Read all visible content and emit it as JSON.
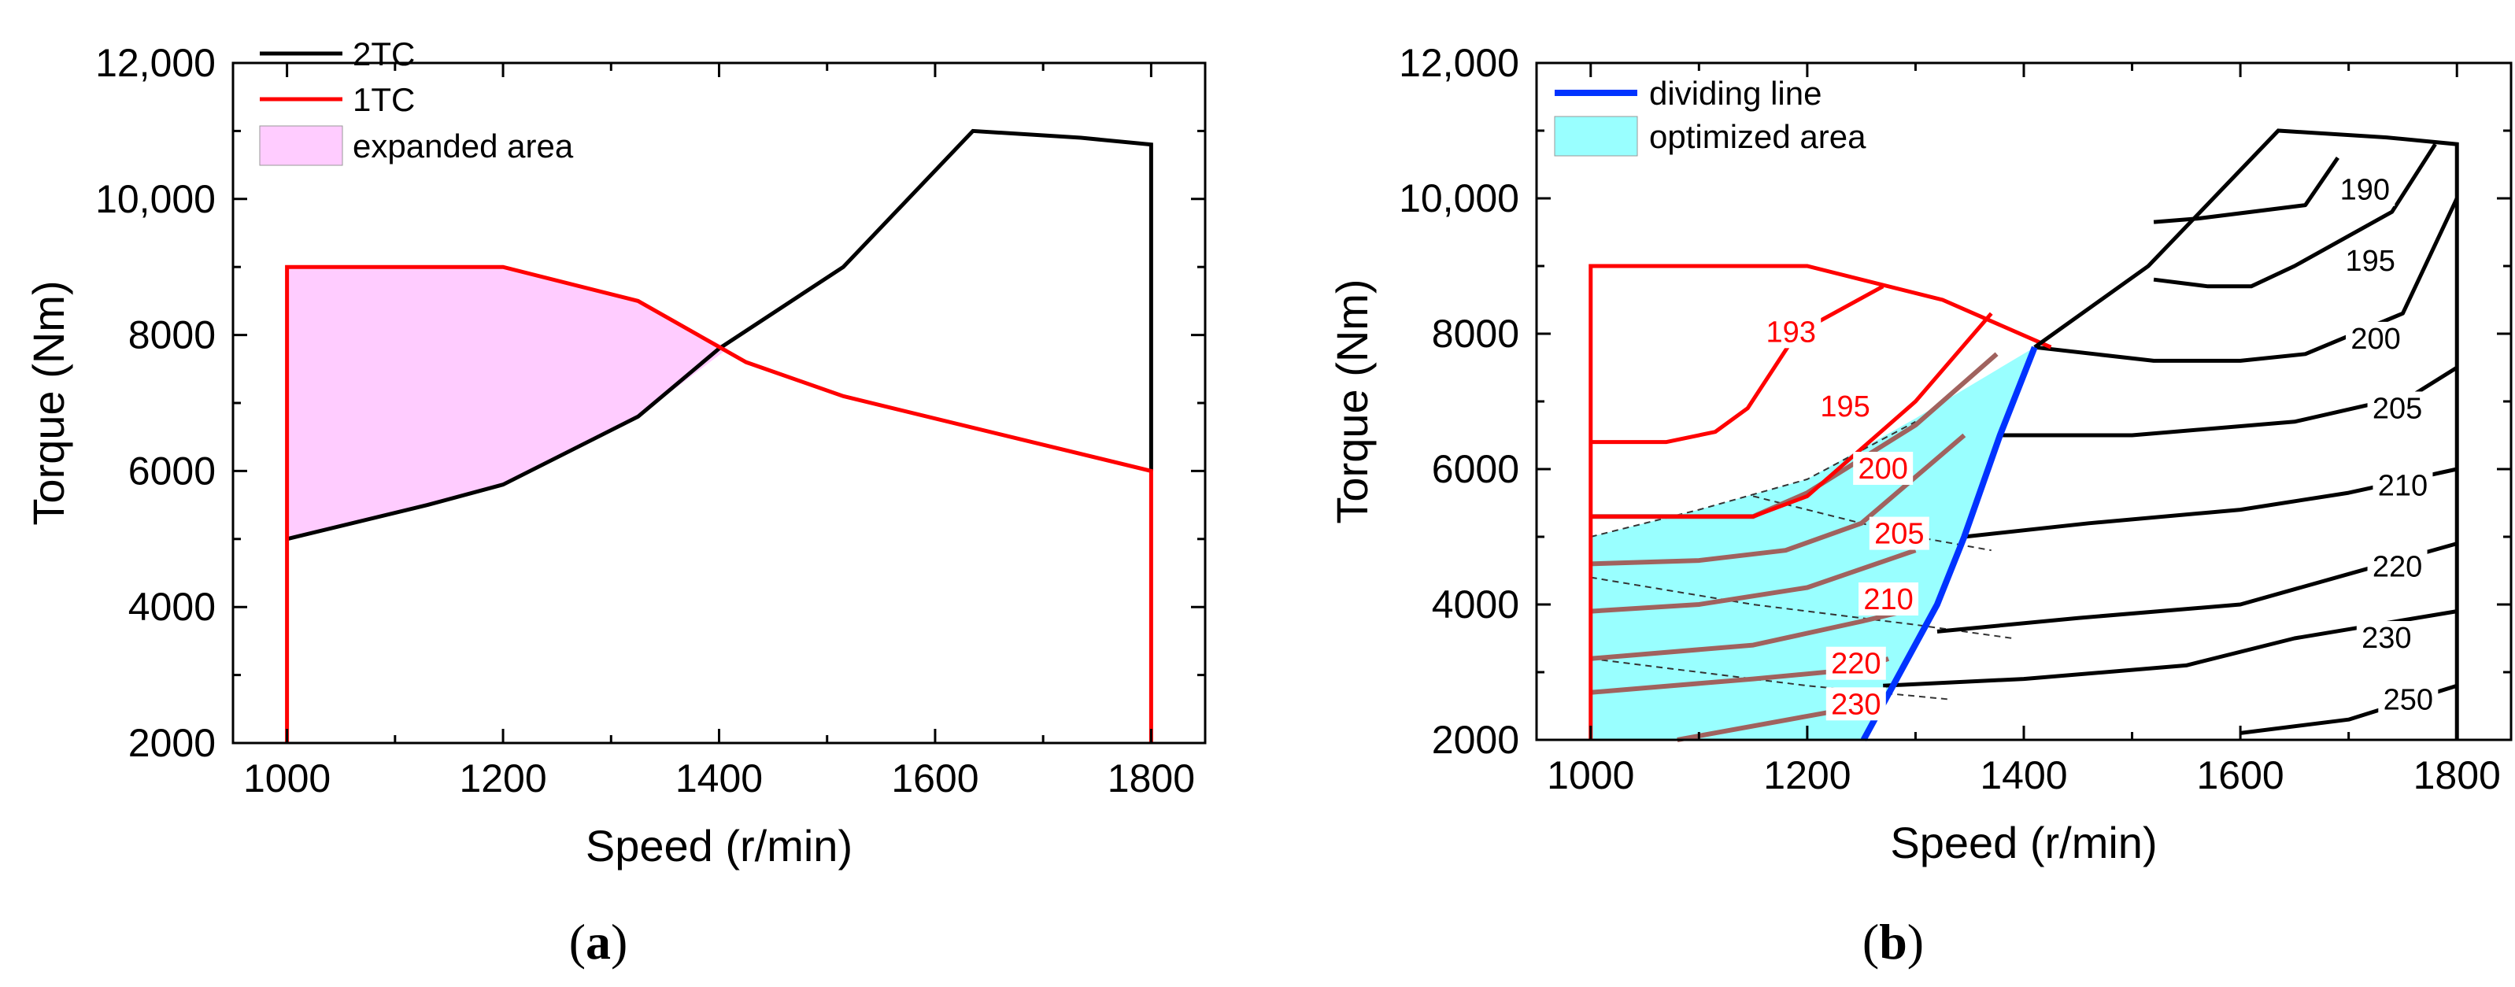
{
  "chart_data": [
    {
      "type": "line",
      "panel_label": "a",
      "xlabel": "Speed (r/min)",
      "ylabel": "Torque (Nm)",
      "xlim": [
        950,
        1850
      ],
      "ylim": [
        2000,
        12000
      ],
      "xticks": [
        1000,
        1200,
        1400,
        1600,
        1800
      ],
      "yticks": [
        2000,
        4000,
        6000,
        8000,
        10000,
        12000
      ],
      "ytick_labels": [
        "2000",
        "4000",
        "6000",
        "8000",
        "10,000",
        "12,000"
      ],
      "legend": [
        "2TC",
        "1TC",
        "expanded area"
      ],
      "series": [
        {
          "name": "2TC",
          "color": "#000000",
          "x": [
            1000,
            1130,
            1200,
            1325,
            1400,
            1515,
            1635,
            1735,
            1800,
            1800
          ],
          "y": [
            5000,
            5500,
            5800,
            6800,
            7800,
            9000,
            11000,
            10900,
            10800,
            6000
          ]
        },
        {
          "name": "1TC",
          "color": "#ff0000",
          "x": [
            1000,
            1000,
            1200,
            1325,
            1425,
            1515,
            1800,
            1800
          ],
          "y": [
            2000,
            9000,
            9000,
            8500,
            7600,
            7100,
            6000,
            2000
          ]
        }
      ],
      "area": {
        "name": "expanded area",
        "color": "#ffccff",
        "x": [
          1000,
          1000,
          1200,
          1325,
          1408,
          1325,
          1200,
          1130
        ],
        "y": [
          5000,
          9000,
          9000,
          8500,
          7800,
          6800,
          5800,
          5500
        ]
      }
    },
    {
      "type": "line",
      "panel_label": "b",
      "xlabel": "Speed (r/min)",
      "ylabel": "Torque (Nm)",
      "xlim": [
        950,
        1850
      ],
      "ylim": [
        2000,
        12000
      ],
      "xticks": [
        1000,
        1200,
        1400,
        1600,
        1800
      ],
      "yticks": [
        2000,
        4000,
        6000,
        8000,
        10000,
        12000
      ],
      "ytick_labels": [
        "2000",
        "4000",
        "6000",
        "8000",
        "10,000",
        "12,000"
      ],
      "legend": [
        "dividing line",
        "optimized area"
      ],
      "boundary_2tc": {
        "color": "#000000",
        "x": [
          1410,
          1515,
          1635,
          1735,
          1800,
          1800
        ],
        "y": [
          7800,
          9000,
          11000,
          10900,
          10800,
          2000
        ]
      },
      "boundary_1tc": {
        "color": "#ff0000",
        "x": [
          1000,
          1000,
          1200,
          1325,
          1425
        ],
        "y": [
          2000,
          9000,
          9000,
          8500,
          7800
        ]
      },
      "dividing_line": {
        "name": "dividing line",
        "color": "#0033ff",
        "x": [
          1252,
          1320,
          1345,
          1378,
          1410
        ],
        "y": [
          2000,
          4000,
          5000,
          6500,
          7800
        ]
      },
      "optimized_area": {
        "name": "optimized area",
        "color": "#99ffff",
        "x": [
          1000,
          1000,
          1100,
          1200,
          1300,
          1410,
          1378,
          1345,
          1320,
          1252
        ],
        "y": [
          2000,
          5000,
          5400,
          5850,
          6750,
          7800,
          6500,
          5000,
          4000,
          2000
        ]
      },
      "contours_black": [
        {
          "label": "190",
          "x": [
            1520,
            1560,
            1660,
            1690
          ],
          "y": [
            9650,
            9700,
            9900,
            10600
          ]
        },
        {
          "label": "195",
          "x": [
            1520,
            1570,
            1610,
            1650,
            1740,
            1780
          ],
          "y": [
            8800,
            8700,
            8700,
            9000,
            9800,
            10800
          ]
        },
        {
          "label": "200",
          "x": [
            1410,
            1520,
            1600,
            1660,
            1750,
            1800
          ],
          "y": [
            7800,
            7600,
            7600,
            7700,
            8300,
            10000
          ]
        },
        {
          "label": "205",
          "x": [
            1378,
            1500,
            1650,
            1760,
            1800
          ],
          "y": [
            6500,
            6500,
            6700,
            7100,
            7500
          ]
        },
        {
          "label": "210",
          "x": [
            1345,
            1460,
            1600,
            1700,
            1800
          ],
          "y": [
            5000,
            5200,
            5400,
            5650,
            6000
          ]
        },
        {
          "label": "220",
          "x": [
            1320,
            1450,
            1600,
            1700,
            1800
          ],
          "y": [
            3600,
            3800,
            4000,
            4450,
            4900
          ]
        },
        {
          "label": "230",
          "x": [
            1270,
            1400,
            1550,
            1650,
            1800
          ],
          "y": [
            2800,
            2900,
            3100,
            3500,
            3900
          ]
        },
        {
          "label": "250",
          "x": [
            1600,
            1700,
            1800
          ],
          "y": [
            2100,
            2300,
            2800
          ]
        }
      ],
      "contours_red": [
        {
          "label": "193",
          "x": [
            1000,
            1070,
            1115,
            1145,
            1190,
            1270
          ],
          "y": [
            6400,
            6400,
            6550,
            6900,
            8000,
            8700
          ]
        },
        {
          "label": "195",
          "x": [
            1000,
            1100,
            1150,
            1200,
            1300,
            1370
          ],
          "y": [
            5300,
            5300,
            5300,
            5600,
            7000,
            8300
          ]
        }
      ],
      "contours_grey": [
        {
          "label": "200",
          "x": [
            1000,
            1100,
            1150,
            1200,
            1300,
            1375
          ],
          "y": [
            5300,
            5300,
            5300,
            5650,
            6650,
            7700
          ]
        },
        {
          "label": "205",
          "x": [
            1000,
            1100,
            1180,
            1250,
            1345
          ],
          "y": [
            4600,
            4650,
            4800,
            5200,
            6500
          ]
        },
        {
          "label": "210",
          "x": [
            1000,
            1100,
            1200,
            1300
          ],
          "y": [
            3900,
            4000,
            4250,
            4800
          ]
        },
        {
          "label": "220",
          "x": [
            1000,
            1150,
            1250,
            1290
          ],
          "y": [
            3200,
            3400,
            3750,
            3900
          ]
        },
        {
          "label": "230",
          "x": [
            1000,
            1150,
            1250,
            1275
          ],
          "y": [
            2700,
            2900,
            3050,
            3200
          ]
        },
        {
          "label": "",
          "x": [
            1080,
            1200,
            1252
          ],
          "y": [
            2000,
            2350,
            2500
          ]
        }
      ],
      "contours_dashed": [
        {
          "x": [
            1000,
            1100,
            1200,
            1300
          ],
          "y": [
            5000,
            5400,
            5850,
            6700
          ]
        },
        {
          "x": [
            1000,
            1150,
            1300,
            1390
          ],
          "y": [
            4400,
            4000,
            3700,
            3500
          ]
        },
        {
          "x": [
            1000,
            1100,
            1200,
            1330
          ],
          "y": [
            3200,
            3000,
            2800,
            2600
          ]
        },
        {
          "x": [
            1150,
            1250,
            1300,
            1370
          ],
          "y": [
            5600,
            5200,
            5000,
            4800
          ]
        }
      ]
    }
  ]
}
